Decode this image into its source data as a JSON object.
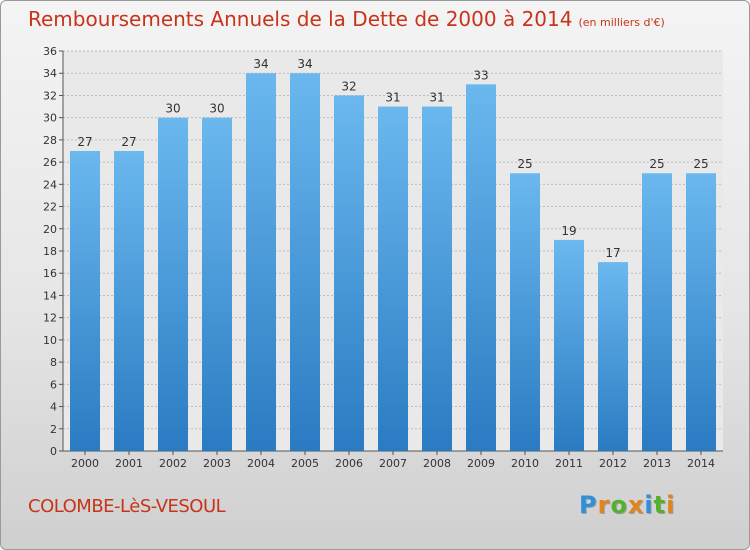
{
  "header": {
    "title": "Remboursements Annuels de la Dette de 2000 à 2014",
    "unit": "(en milliers d'€)"
  },
  "footer": {
    "place": "COLOMBE-LèS-VESOUL",
    "logo_letters": [
      {
        "ch": "P",
        "color": "#2f8fd8"
      },
      {
        "ch": "r",
        "color": "#e0851b"
      },
      {
        "ch": "o",
        "color": "#55b030"
      },
      {
        "ch": "x",
        "color": "#e0851b"
      },
      {
        "ch": "i",
        "color": "#2f8fd8"
      },
      {
        "ch": "t",
        "color": "#55b030"
      },
      {
        "ch": "i",
        "color": "#e0851b"
      }
    ]
  },
  "colors": {
    "title": "#c8341a",
    "bar_top": "#6bb8ef",
    "bar_bottom": "#2a7bc2",
    "grid": "#bcbcbc"
  },
  "chart_data": {
    "type": "bar",
    "categories": [
      "2000",
      "2001",
      "2002",
      "2003",
      "2004",
      "2005",
      "2006",
      "2007",
      "2008",
      "2009",
      "2010",
      "2011",
      "2012",
      "2013",
      "2014"
    ],
    "values": [
      27,
      27,
      30,
      30,
      34,
      34,
      32,
      31,
      31,
      33,
      25,
      19,
      17,
      25,
      25
    ],
    "title": "Remboursements Annuels de la Dette de 2000 à 2014",
    "ylim": [
      0,
      36
    ],
    "ytick_step": 2,
    "grid": true
  }
}
